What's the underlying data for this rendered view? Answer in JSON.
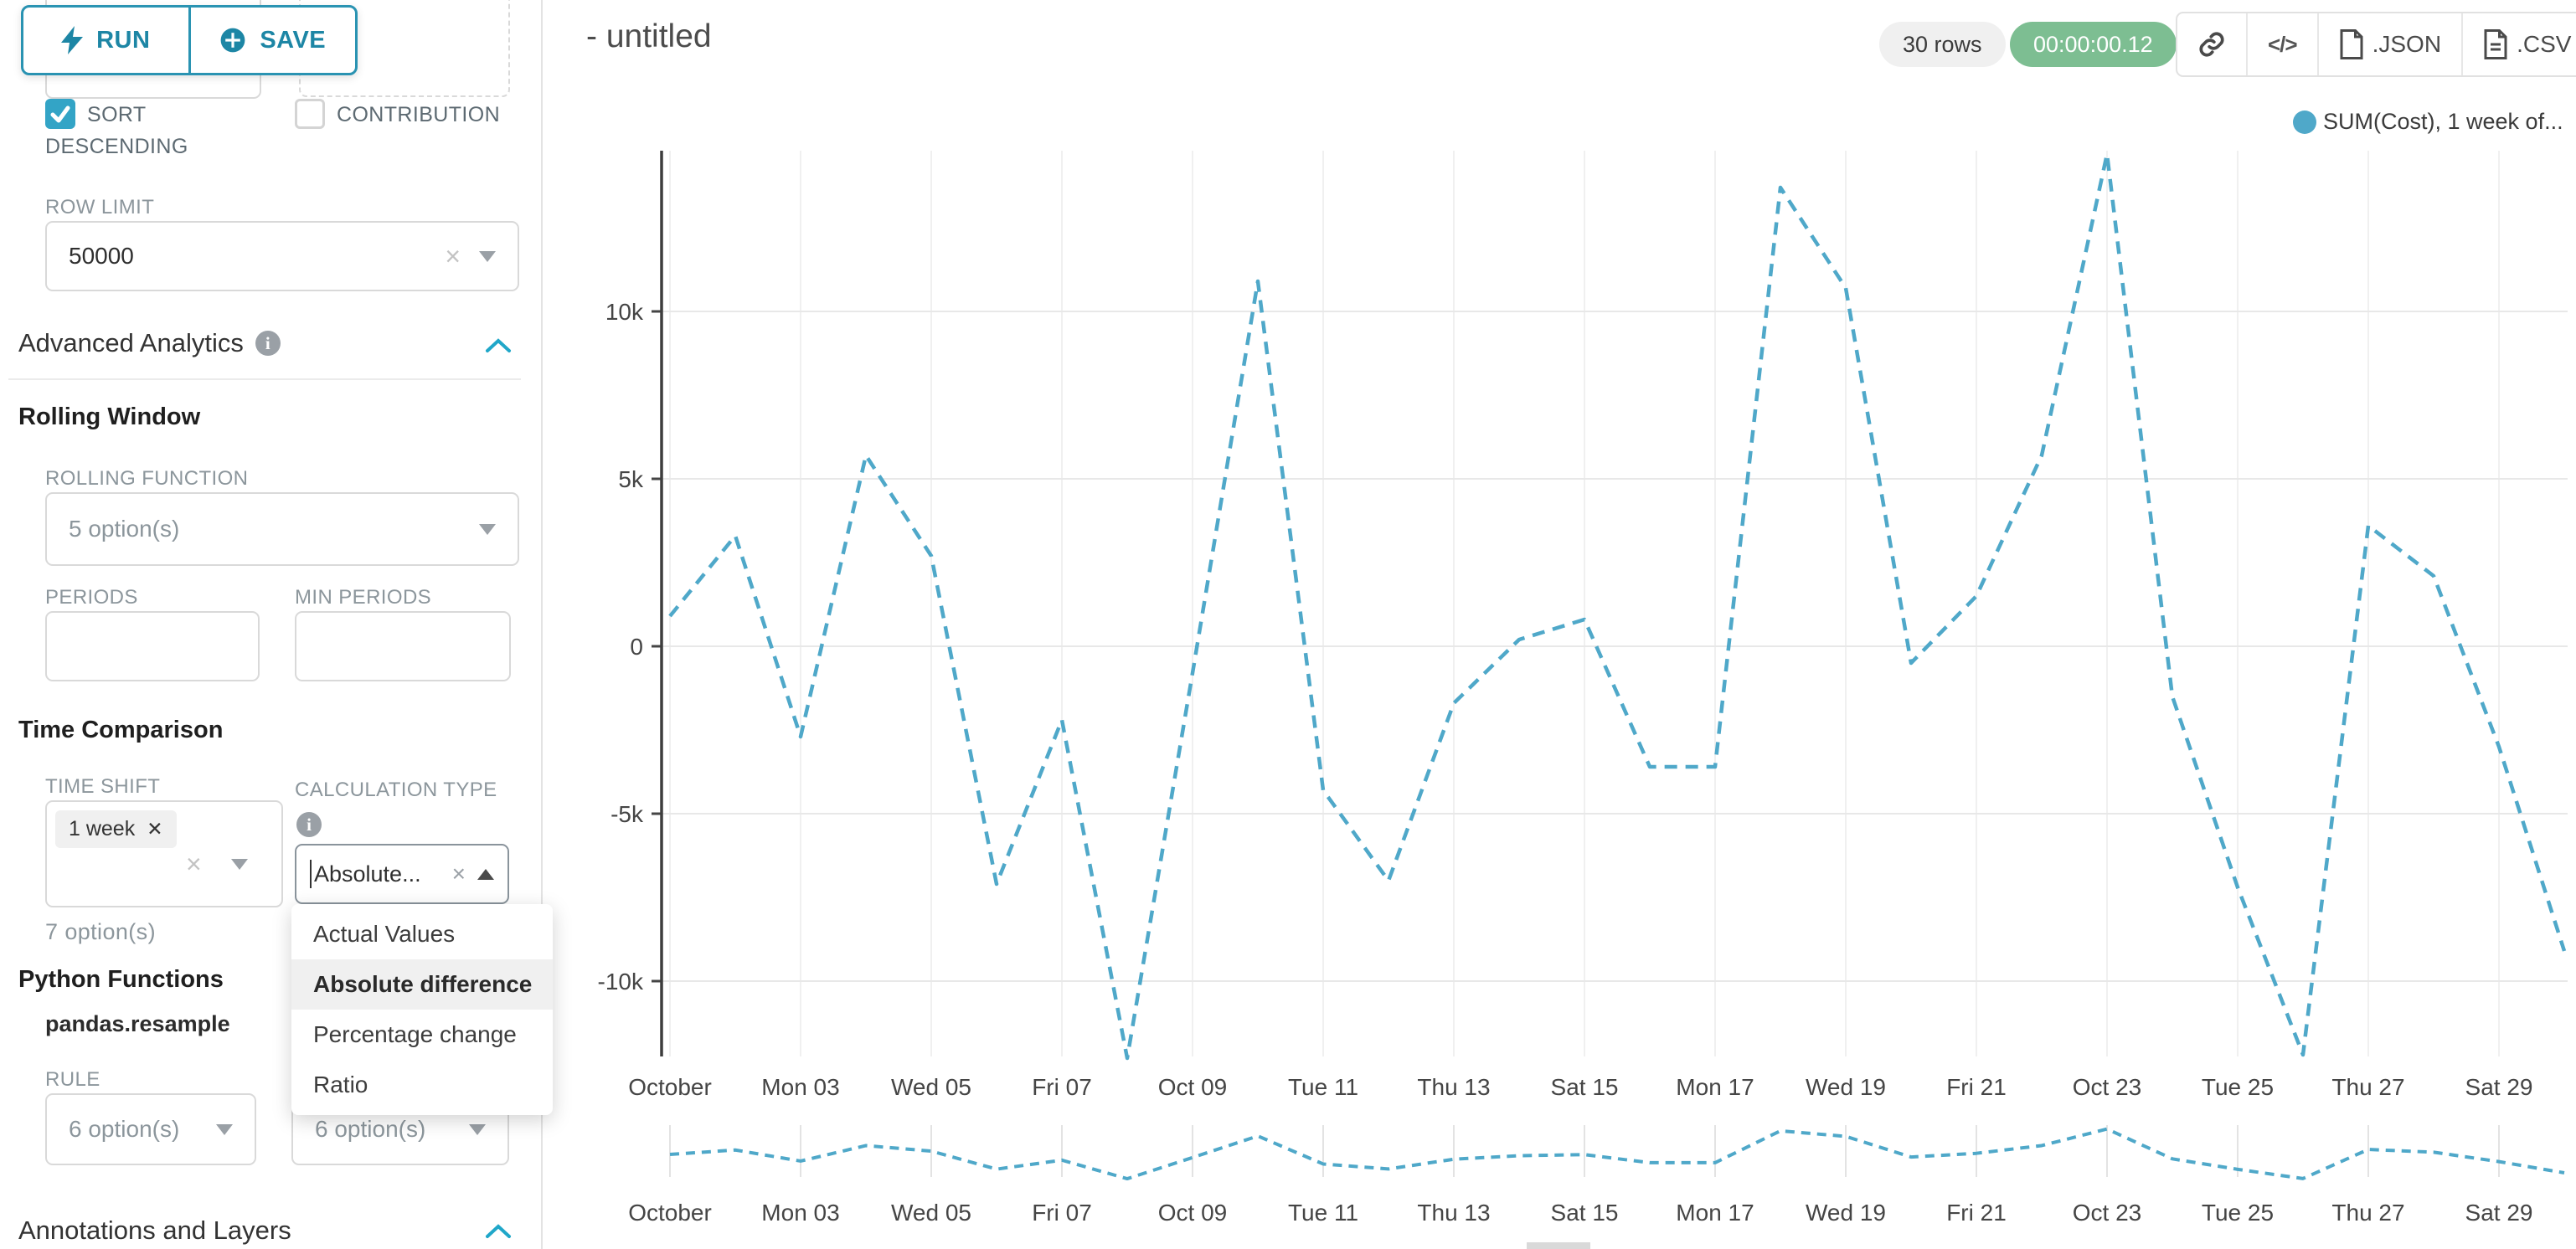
{
  "header": {
    "title": "- untitled",
    "rows_badge": "30 rows",
    "timer_badge": "00:00:00.12",
    "json_label": ".JSON",
    "csv_label": ".CSV",
    "code_glyph": "</>"
  },
  "toolbar": {
    "run_label": "RUN",
    "save_label": "SAVE"
  },
  "sidebar": {
    "partial_select_value": "7 option(s)",
    "sort_descending": {
      "label": "SORT DESCENDING",
      "checked": true
    },
    "contribution": {
      "label": "CONTRIBUTION",
      "checked": false
    },
    "row_limit": {
      "label": "ROW LIMIT",
      "value": "50000"
    },
    "advanced_analytics": {
      "title": "Advanced Analytics"
    },
    "rolling_window": {
      "title": "Rolling Window",
      "rolling_function_label": "ROLLING FUNCTION",
      "rolling_function_value": "5 option(s)",
      "periods_label": "PERIODS",
      "min_periods_label": "MIN PERIODS"
    },
    "time_comparison": {
      "title": "Time Comparison",
      "time_shift_label": "TIME SHIFT",
      "time_shift_tag": "1 week",
      "time_shift_hint": "7 option(s)",
      "calculation_type_label": "CALCULATION TYPE",
      "calculation_type_value": "Absolute...",
      "dropdown_options": [
        "Actual Values",
        "Absolute difference",
        "Percentage change",
        "Ratio"
      ],
      "dropdown_selected": "Absolute difference"
    },
    "python_functions": {
      "title": "Python Functions",
      "subtitle": "pandas.resample",
      "rule_label": "RULE",
      "rule_value": "6 option(s)",
      "rule_value_2": "6 option(s)"
    },
    "annotations": {
      "title": "Annotations and Layers"
    }
  },
  "legend": {
    "label": "SUM(Cost), 1 week of...",
    "color": "#4FA8C9"
  },
  "chart_data": {
    "type": "line",
    "title": "",
    "legend_position": "top-right",
    "grid": true,
    "line_style": "dashed",
    "n_points": 30,
    "x_tick_labels": [
      "October",
      "Mon 03",
      "Wed 05",
      "Fri 07",
      "Oct 09",
      "Tue 11",
      "Thu 13",
      "Sat 15",
      "Mon 17",
      "Wed 19",
      "Fri 21",
      "Oct 23",
      "Tue 25",
      "Thu 27",
      "Sat 29"
    ],
    "y_ticks": [
      {
        "label": "10k",
        "value": 10000
      },
      {
        "label": "5k",
        "value": 5000
      },
      {
        "label": "0",
        "value": 0
      },
      {
        "label": "-5k",
        "value": -5000
      },
      {
        "label": "-10k",
        "value": -10000
      }
    ],
    "ylim": [
      -12500,
      15000
    ],
    "series": [
      {
        "name": "SUM(Cost), 1 week of...",
        "color": "#4FA8C9",
        "values": [
          900,
          3300,
          -2700,
          5700,
          2700,
          -7100,
          -2200,
          -12300,
          -800,
          10900,
          -4300,
          -7000,
          -1700,
          200,
          800,
          -3600,
          -3600,
          13700,
          10700,
          -500,
          1500,
          5700,
          14700,
          -1500,
          -7200,
          -12200,
          3600,
          2100,
          -3000,
          -9100
        ]
      }
    ],
    "has_mini_preview": true
  }
}
